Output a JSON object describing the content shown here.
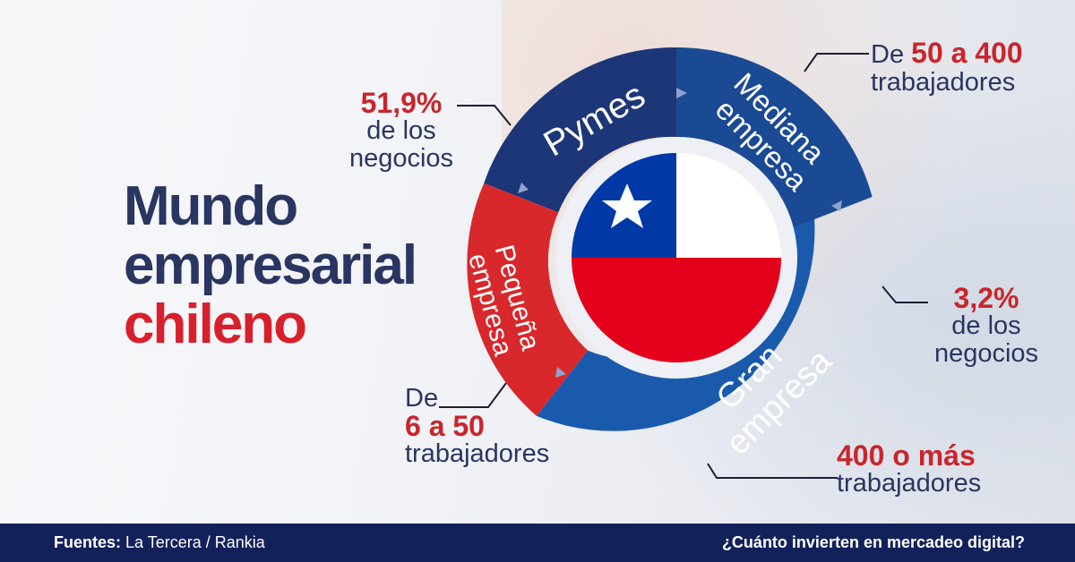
{
  "title": {
    "line1": "Mundo",
    "line2": "empresarial",
    "line3": "chileno"
  },
  "segments": {
    "pymes": "Pymes",
    "mediana_1": "Mediana",
    "mediana_2": "empresa",
    "gran_1": "Gran",
    "gran_2": "empresa",
    "pequena_1": "Pequeña",
    "pequena_2": "empresa"
  },
  "callouts": {
    "pymes_pct": "51,9%",
    "pymes_text_1": "de los",
    "pymes_text_2": "negocios",
    "mediana_prefix": "De ",
    "mediana_range": "50 a 400",
    "mediana_unit": "trabajadores",
    "gran_pct": "3,2%",
    "gran_text_1": "de los",
    "gran_text_2": "negocios",
    "gran_range": "400 o más",
    "gran_unit": "trabajadores",
    "pequena_prefix": "De",
    "pequena_range": "6 a 50",
    "pequena_unit": "trabajadores"
  },
  "footer": {
    "sources_label": "Fuentes:",
    "sources": "La Tercera  / Rankia",
    "question": "¿Cuánto invierten en mercadeo digital?"
  },
  "colors": {
    "navy": "#1c3677",
    "blue": "#1a5aad",
    "red": "#d8282c",
    "flag_blue": "#0039a6",
    "flag_red": "#d52b1e",
    "title_navy": "#2a3561",
    "accent_red": "#d8202c",
    "footer": "#13215a"
  }
}
